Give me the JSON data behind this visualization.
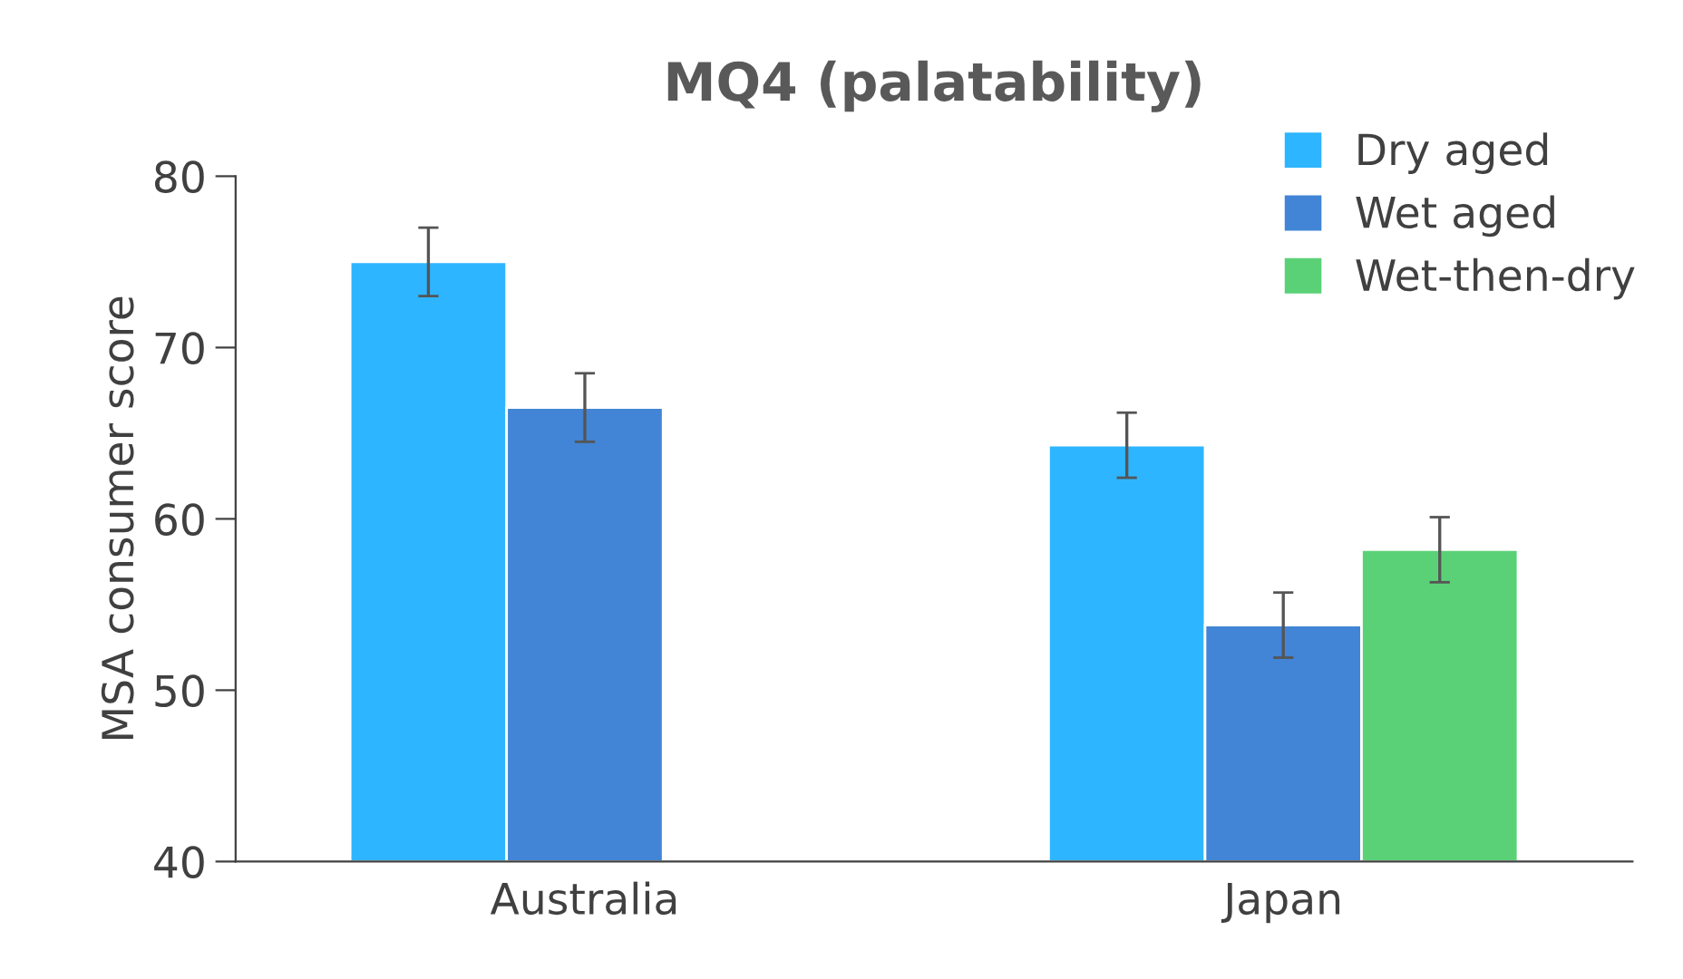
{
  "chart_data": {
    "type": "bar",
    "title": "MQ4 (palatability)",
    "ylabel": "MSA consumer score",
    "categories": [
      "Australia",
      "Japan"
    ],
    "series": [
      {
        "name": "Dry aged",
        "color": "#2eb5ff",
        "values": [
          75.0,
          64.3
        ],
        "errors": [
          2.0,
          1.9
        ]
      },
      {
        "name": "Wet aged",
        "color": "#4285d6",
        "values": [
          66.5,
          53.8
        ],
        "errors": [
          2.0,
          1.9
        ]
      },
      {
        "name": "Wet-then-dry",
        "color": "#5bd177",
        "values": [
          null,
          58.2
        ],
        "errors": [
          null,
          1.9
        ]
      }
    ],
    "ylim": [
      40,
      80
    ],
    "yticks": [
      40,
      50,
      60,
      70,
      80
    ],
    "grid": false,
    "legend": "top right"
  }
}
